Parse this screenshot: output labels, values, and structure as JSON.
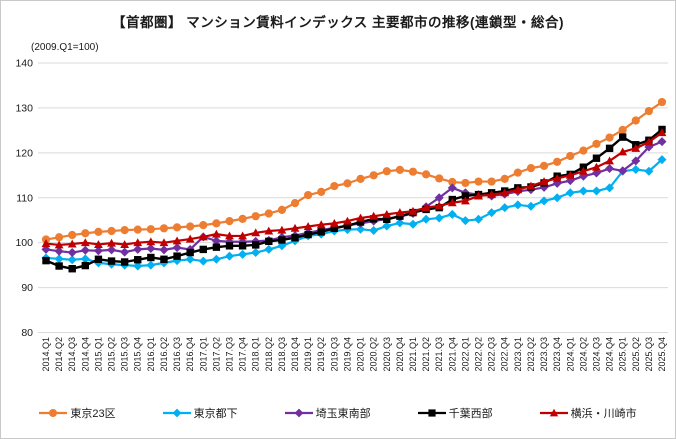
{
  "header": {
    "title": "【首都圏】 マンション賃料インデックス 主要都市の推移(連鎖型・総合)",
    "unit_note": "(2009.Q1=100)"
  },
  "chart_data": {
    "type": "line",
    "title": "【首都圏】 マンション賃料インデックス 主要都市の推移(連鎖型・総合)",
    "subtitle": "(2009.Q1=100)",
    "ylim": [
      80,
      140
    ],
    "yticks": [
      80,
      90,
      100,
      110,
      120,
      130,
      140
    ],
    "grid": "horizontal",
    "legend_position": "bottom",
    "categories": [
      "2014.Q1",
      "2014.Q2",
      "2014.Q3",
      "2014.Q4",
      "2015.Q1",
      "2015.Q2",
      "2015.Q3",
      "2015.Q4",
      "2016.Q1",
      "2016.Q2",
      "2016.Q3",
      "2016.Q4",
      "2017.Q1",
      "2017.Q2",
      "2017.Q3",
      "2017.Q4",
      "2018.Q1",
      "2018.Q2",
      "2018.Q3",
      "2018.Q4",
      "2019.Q1",
      "2019.Q2",
      "2019.Q3",
      "2019.Q4",
      "2020.Q1",
      "2020.Q2",
      "2020.Q3",
      "2020.Q4",
      "2021.Q1",
      "2021.Q2",
      "2021.Q3",
      "2021.Q4",
      "2022.Q1",
      "2022.Q2",
      "2022.Q3",
      "2022.Q4",
      "2023.Q1",
      "2023.Q2",
      "2023.Q3",
      "2023.Q4",
      "2024.Q1",
      "2024.Q2",
      "2024.Q3",
      "2024.Q4",
      "2025.Q1",
      "2025.Q2",
      "2025.Q3",
      "2025.Q4"
    ],
    "series": [
      {
        "name": "東京23区",
        "color": "#ED7D31",
        "marker": "circle",
        "values": [
          100.7,
          101.2,
          101.7,
          102.1,
          102.4,
          102.6,
          102.8,
          102.9,
          103.0,
          103.2,
          103.4,
          103.6,
          103.9,
          104.3,
          104.8,
          105.3,
          105.9,
          106.5,
          107.3,
          108.8,
          110.6,
          111.3,
          112.6,
          113.2,
          114.2,
          115.0,
          115.9,
          116.2,
          115.8,
          115.2,
          114.3,
          113.5,
          113.3,
          113.6,
          113.6,
          114.2,
          115.6,
          116.6,
          117.1,
          118.0,
          119.3,
          120.5,
          122.0,
          123.4,
          125.1,
          127.2,
          129.3,
          131.3
        ]
      },
      {
        "name": "東京都下",
        "color": "#00B0F0",
        "marker": "diamond",
        "values": [
          96.6,
          96.4,
          96.2,
          96.4,
          95.5,
          95.2,
          95.0,
          94.8,
          95.0,
          95.5,
          96.0,
          96.3,
          95.9,
          96.3,
          97.0,
          97.4,
          97.8,
          98.5,
          99.3,
          100.4,
          101.5,
          101.9,
          102.6,
          102.9,
          103.0,
          102.7,
          103.7,
          104.4,
          104.1,
          105.2,
          105.5,
          106.3,
          104.9,
          105.2,
          106.7,
          107.8,
          108.4,
          108.1,
          109.3,
          110.0,
          111.1,
          111.5,
          111.5,
          112.2,
          115.9,
          116.3,
          115.9,
          118.5
        ]
      },
      {
        "name": "埼玉東南部",
        "color": "#7030A0",
        "marker": "diamond",
        "values": [
          98.5,
          98.1,
          97.8,
          98.3,
          98.2,
          98.4,
          97.9,
          98.5,
          98.7,
          98.4,
          98.9,
          98.5,
          101.3,
          100.4,
          100.2,
          100.2,
          100.3,
          100.5,
          101.2,
          101.6,
          102.2,
          102.8,
          103.3,
          103.8,
          104.3,
          104.8,
          105.3,
          105.8,
          106.5,
          108.0,
          110.0,
          112.2,
          111.1,
          110.7,
          110.4,
          110.8,
          111.4,
          111.8,
          112.3,
          113.2,
          113.8,
          114.8,
          115.5,
          116.5,
          116.0,
          118.2,
          121.3,
          122.5
        ]
      },
      {
        "name": "千葉西部",
        "color": "#000000",
        "marker": "square",
        "values": [
          96.0,
          94.8,
          94.2,
          94.9,
          96.3,
          95.9,
          95.7,
          96.2,
          96.7,
          96.3,
          97.0,
          97.8,
          98.5,
          99.0,
          99.3,
          99.3,
          99.5,
          100.3,
          100.6,
          101.1,
          101.8,
          102.4,
          103.2,
          103.8,
          104.6,
          105.3,
          105.2,
          105.9,
          106.7,
          107.4,
          107.8,
          109.6,
          110.4,
          110.7,
          111.1,
          111.5,
          112.2,
          112.4,
          113.3,
          114.8,
          115.2,
          116.8,
          118.8,
          121.0,
          123.5,
          121.8,
          122.8,
          125.2
        ]
      },
      {
        "name": "横浜・川崎市",
        "color": "#C00000",
        "marker": "triangle",
        "values": [
          99.8,
          99.5,
          99.7,
          100.0,
          99.6,
          99.9,
          99.6,
          100.0,
          100.2,
          100.0,
          100.4,
          100.8,
          101.3,
          101.9,
          101.5,
          101.5,
          102.2,
          102.6,
          102.8,
          103.2,
          103.6,
          104.0,
          104.3,
          104.8,
          105.5,
          105.9,
          106.3,
          106.7,
          107.0,
          107.8,
          108.2,
          108.9,
          109.3,
          110.4,
          110.7,
          111.1,
          111.8,
          112.6,
          113.6,
          114.3,
          115.0,
          115.9,
          116.8,
          118.2,
          120.2,
          121.0,
          122.4,
          124.5
        ]
      }
    ],
    "colors": {
      "gridline": "#D9D9D9",
      "axis_text": "#1a1a1a",
      "background": "#FFFFFF"
    }
  }
}
